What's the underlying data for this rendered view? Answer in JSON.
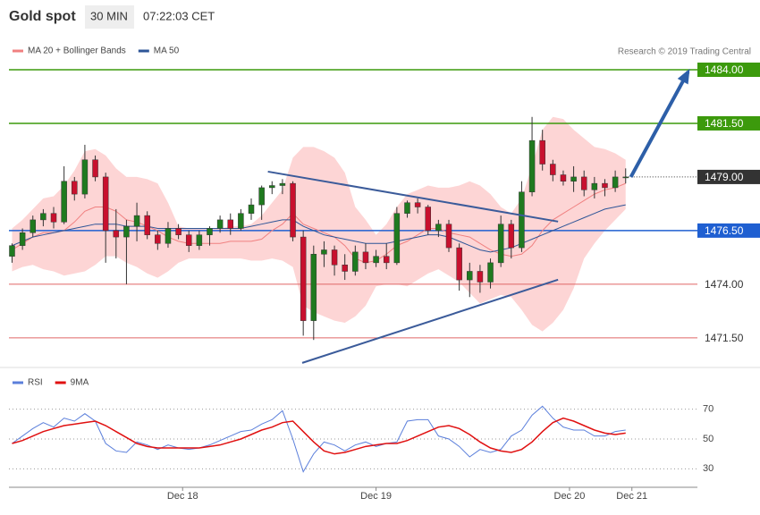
{
  "chart_data": {
    "type": "candlestick",
    "title": "Gold spot",
    "timeframe": "30 MIN",
    "time": "07:22:03 CET",
    "credit": "Research © 2019 Trading Central",
    "xlim": [
      -0.3,
      65.9
    ],
    "xticks": [
      {
        "value": 16.4,
        "label": "Dec 18"
      },
      {
        "value": 35.0,
        "label": "Dec 19"
      },
      {
        "value": 53.6,
        "label": "Dec 20"
      },
      {
        "value": 59.6,
        "label": "Dec 21"
      }
    ],
    "ylim": [
      1470.2,
      1484.5
    ],
    "open": [
      1475.3,
      1475.8,
      1476.4,
      1477.0,
      1477.3,
      1476.9,
      1478.8,
      1478.2,
      1479.8,
      1479.0,
      1476.5,
      1476.2,
      1476.7,
      1477.2,
      1476.3,
      1475.9,
      1476.6,
      1476.3,
      1475.8,
      1476.3,
      1476.6,
      1477.0,
      1476.6,
      1477.3,
      1477.7,
      1478.5,
      1478.6,
      1478.7,
      1476.2,
      1472.3,
      1475.4,
      1475.6,
      1474.9,
      1474.6,
      1475.5,
      1475.0,
      1475.3,
      1475.0,
      1477.3,
      1477.8,
      1477.6,
      1476.5,
      1476.8,
      1475.7,
      1474.2,
      1474.6,
      1474.1,
      1475.0,
      1476.8,
      1475.7,
      1478.3,
      1480.7,
      1479.6,
      1479.1,
      1478.8,
      1479.0,
      1478.4,
      1478.7,
      1478.5,
      1479.0
    ],
    "high": [
      1475.9,
      1476.6,
      1477.2,
      1477.5,
      1477.6,
      1479.5,
      1479.0,
      1480.5,
      1480.0,
      1479.2,
      1477.5,
      1477.0,
      1477.8,
      1477.4,
      1476.5,
      1476.9,
      1476.8,
      1476.5,
      1476.5,
      1476.7,
      1477.2,
      1477.3,
      1477.5,
      1478.0,
      1478.6,
      1478.8,
      1478.9,
      1478.8,
      1476.5,
      1475.8,
      1476.0,
      1475.8,
      1475.4,
      1475.8,
      1475.9,
      1475.6,
      1475.9,
      1477.6,
      1477.9,
      1478.0,
      1477.7,
      1477.0,
      1477.0,
      1475.9,
      1475.0,
      1474.9,
      1475.2,
      1477.2,
      1477.0,
      1478.8,
      1481.8,
      1481.2,
      1479.8,
      1479.3,
      1479.5,
      1479.3,
      1479.0,
      1478.9,
      1479.3,
      1479.4
    ],
    "low": [
      1475.0,
      1475.6,
      1476.2,
      1476.7,
      1476.6,
      1476.8,
      1477.9,
      1478.0,
      1478.8,
      1475.0,
      1475.2,
      1474.0,
      1476.0,
      1476.1,
      1475.6,
      1475.7,
      1476.1,
      1475.5,
      1475.6,
      1475.8,
      1476.4,
      1476.3,
      1476.5,
      1477.0,
      1477.0,
      1478.2,
      1478.2,
      1476.0,
      1471.6,
      1471.4,
      1474.8,
      1474.4,
      1474.2,
      1474.4,
      1474.7,
      1474.8,
      1474.7,
      1474.9,
      1477.1,
      1477.3,
      1476.3,
      1476.2,
      1475.5,
      1473.7,
      1473.4,
      1473.6,
      1473.8,
      1474.8,
      1475.2,
      1475.5,
      1478.1,
      1479.3,
      1478.8,
      1478.6,
      1478.3,
      1478.1,
      1478.0,
      1478.1,
      1478.3,
      1478.7
    ],
    "close": [
      1475.8,
      1476.4,
      1477.0,
      1477.3,
      1476.9,
      1478.8,
      1478.2,
      1479.8,
      1479.0,
      1476.5,
      1476.2,
      1476.7,
      1477.2,
      1476.3,
      1475.9,
      1476.6,
      1476.3,
      1475.8,
      1476.3,
      1476.6,
      1477.0,
      1476.6,
      1477.3,
      1477.7,
      1478.5,
      1478.6,
      1478.7,
      1476.2,
      1472.3,
      1475.4,
      1475.6,
      1474.9,
      1474.6,
      1475.5,
      1475.0,
      1475.3,
      1475.0,
      1477.3,
      1477.8,
      1477.6,
      1476.5,
      1476.8,
      1475.7,
      1474.2,
      1474.6,
      1474.1,
      1475.0,
      1476.8,
      1475.7,
      1478.3,
      1480.7,
      1479.6,
      1479.1,
      1478.8,
      1479.0,
      1478.4,
      1478.7,
      1478.5,
      1479.0,
      1479.0
    ],
    "up_color": "#1f7a1f",
    "down_color": "#c8102e",
    "series": [
      {
        "name": "MA 20 + Bollinger Bands",
        "color": "#f08080",
        "band_color": "#fdd5d5",
        "values": [
          1475.6,
          1475.9,
          1476.2,
          1476.4,
          1476.4,
          1476.5,
          1476.9,
          1477.4,
          1477.6,
          1477.6,
          1477.4,
          1477.0,
          1476.9,
          1476.7,
          1476.5,
          1476.2,
          1476.0,
          1475.9,
          1475.9,
          1475.9,
          1475.9,
          1476.0,
          1476.0,
          1476.0,
          1476.1,
          1476.5,
          1476.8,
          1477.3,
          1476.8,
          1476.6,
          1476.4,
          1476.2,
          1475.8,
          1475.2,
          1475.0,
          1475.1,
          1475.4,
          1475.8,
          1476.0,
          1476.3,
          1476.6,
          1476.6,
          1476.4,
          1476.3,
          1476.2,
          1475.9,
          1475.6,
          1475.4,
          1475.3,
          1475.4,
          1475.8,
          1476.5,
          1477.0,
          1477.3,
          1477.6,
          1477.9,
          1478.2,
          1478.4,
          1478.5,
          1478.7
        ],
        "upper": [
          1476.6,
          1477.0,
          1477.5,
          1478.0,
          1478.1,
          1478.6,
          1479.3,
          1480.2,
          1480.3,
          1480.0,
          1479.4,
          1479.0,
          1479.0,
          1478.9,
          1478.7,
          1477.8,
          1476.7,
          1476.6,
          1476.6,
          1476.6,
          1476.6,
          1476.7,
          1476.7,
          1476.8,
          1477.2,
          1477.8,
          1478.4,
          1479.9,
          1480.4,
          1480.4,
          1480.2,
          1479.9,
          1479.2,
          1477.6,
          1477.0,
          1476.3,
          1476.8,
          1477.6,
          1478.2,
          1478.4,
          1478.6,
          1478.5,
          1478.5,
          1478.6,
          1478.8,
          1478.6,
          1478.2,
          1477.6,
          1477.3,
          1478.0,
          1479.5,
          1481.2,
          1481.8,
          1481.7,
          1481.2,
          1480.8,
          1480.4,
          1480.3,
          1480.1,
          1479.8
        ],
        "lower": [
          1474.6,
          1474.8,
          1474.9,
          1474.7,
          1474.6,
          1474.4,
          1474.5,
          1474.6,
          1474.9,
          1475.3,
          1475.3,
          1475.0,
          1474.8,
          1474.5,
          1474.3,
          1474.6,
          1475.0,
          1475.2,
          1475.2,
          1475.2,
          1475.2,
          1475.2,
          1475.2,
          1475.1,
          1475.1,
          1475.2,
          1475.1,
          1474.8,
          1473.0,
          1472.7,
          1472.5,
          1472.3,
          1472.2,
          1472.5,
          1473.0,
          1473.9,
          1474.0,
          1474.0,
          1473.9,
          1474.2,
          1474.5,
          1474.7,
          1474.4,
          1474.1,
          1473.6,
          1473.1,
          1473.3,
          1473.5,
          1473.4,
          1472.8,
          1472.1,
          1471.8,
          1472.2,
          1472.8,
          1473.8,
          1475.2,
          1475.9,
          1476.5,
          1477.0,
          1477.5
        ]
      },
      {
        "name": "MA 50",
        "color": "#2d5597",
        "values": [
          1475.8,
          1476.0,
          1476.2,
          1476.3,
          1476.4,
          1476.5,
          1476.6,
          1476.7,
          1476.8,
          1476.8,
          1476.8,
          1476.7,
          1476.7,
          1476.7,
          1476.6,
          1476.6,
          1476.6,
          1476.6,
          1476.6,
          1476.6,
          1476.6,
          1476.6,
          1476.6,
          1476.7,
          1476.8,
          1476.9,
          1477.0,
          1477.0,
          1476.7,
          1476.5,
          1476.3,
          1476.2,
          1476.1,
          1476.0,
          1475.9,
          1475.9,
          1475.9,
          1476.0,
          1476.1,
          1476.2,
          1476.3,
          1476.3,
          1476.2,
          1476.0,
          1475.8,
          1475.6,
          1475.5,
          1475.6,
          1475.7,
          1475.9,
          1476.1,
          1476.3,
          1476.5,
          1476.7,
          1476.9,
          1477.1,
          1477.3,
          1477.5,
          1477.6,
          1477.7
        ]
      }
    ],
    "levels": [
      {
        "value": 1484,
        "label": "1484.00",
        "color": "#3c9a0c",
        "label_style": "box"
      },
      {
        "value": 1481.5,
        "label": "1481.50",
        "color": "#3c9a0c",
        "label_style": "box"
      },
      {
        "value": 1479,
        "label": "1479.00",
        "color": "#333333",
        "label_style": "current"
      },
      {
        "value": 1476.5,
        "label": "1476.50",
        "color": "#1f5fd1",
        "label_style": "box"
      },
      {
        "value": 1474,
        "label": "1474.00",
        "color": "#e06666",
        "label_style": "text"
      },
      {
        "value": 1471.5,
        "label": "1471.50",
        "color": "#e06666",
        "label_style": "text"
      }
    ],
    "trendlines": [
      {
        "x": [
          24.6,
          52.5
        ],
        "y": [
          1479.25,
          1476.92
        ],
        "color": "#3b5b9a"
      },
      {
        "x": [
          27.9,
          52.5
        ],
        "y": [
          1470.33,
          1474.21
        ],
        "color": "#3b5b9a"
      },
      {
        "x": [
          59.5,
          65.0
        ],
        "y": [
          1479.0,
          1483.9
        ],
        "color": "#2d5fa8",
        "arrow": true
      }
    ],
    "indicator": {
      "ylim": [
        20,
        80
      ],
      "yticks": [
        30,
        50,
        70
      ],
      "series": [
        {
          "name": "RSI",
          "color": "#5b7fdb",
          "values": [
            47,
            52,
            57,
            61,
            58,
            64,
            62,
            67,
            62,
            47,
            42,
            41,
            48,
            46,
            43,
            46,
            44,
            43,
            44,
            46,
            49,
            52,
            55,
            56,
            60,
            63,
            69,
            50,
            28,
            40,
            48,
            46,
            42,
            46,
            48,
            45,
            47,
            48,
            62,
            63,
            63,
            52,
            50,
            45,
            38,
            43,
            41,
            43,
            52,
            56,
            66,
            72,
            64,
            58,
            56,
            56,
            52,
            52,
            55,
            56
          ]
        },
        {
          "name": "9MA",
          "color": "#e01010",
          "values": [
            47,
            49,
            52,
            55,
            57,
            59,
            60,
            61,
            62,
            59,
            55,
            51,
            47,
            45,
            44,
            44,
            44,
            44,
            44,
            45,
            46,
            48,
            50,
            53,
            56,
            58,
            61,
            62,
            55,
            48,
            42,
            40,
            41,
            43,
            45,
            46,
            47,
            47,
            49,
            52,
            55,
            58,
            59,
            57,
            53,
            48,
            44,
            42,
            41,
            43,
            48,
            55,
            61,
            64,
            62,
            59,
            56,
            54,
            53,
            54
          ]
        }
      ]
    }
  }
}
